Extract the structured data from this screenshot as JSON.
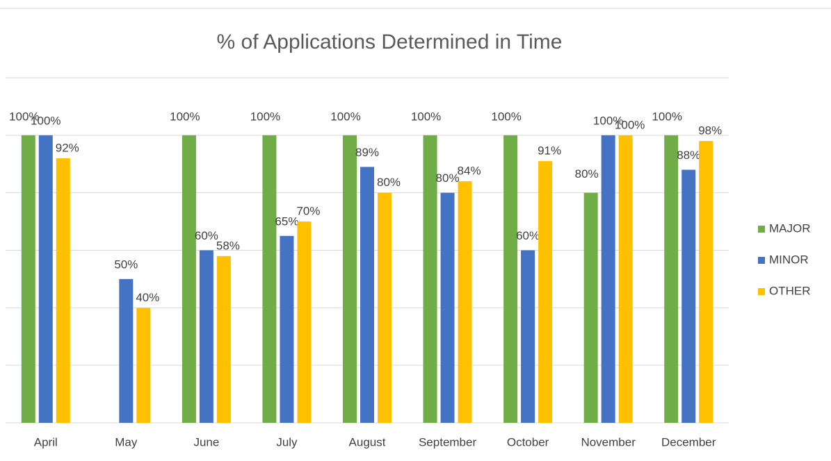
{
  "chart_data": {
    "type": "bar",
    "title": "% of Applications Determined in Time",
    "categories": [
      "April",
      "May",
      "June",
      "July",
      "August",
      "September",
      "October",
      "November",
      "December"
    ],
    "series": [
      {
        "name": "MAJOR",
        "color": "#70ad47",
        "values": [
          100,
          null,
          100,
          100,
          100,
          100,
          100,
          80,
          100
        ],
        "value_labels": [
          "100%",
          null,
          "100%",
          "100%",
          "100%",
          "100%",
          "100%",
          "80%",
          "100%"
        ]
      },
      {
        "name": "MINOR",
        "color": "#4472c4",
        "values": [
          100,
          50,
          60,
          65,
          89,
          80,
          60,
          100,
          88
        ],
        "value_labels": [
          "100%",
          "50%",
          "60%",
          "65%",
          "89%",
          "80%",
          "60%",
          "100%",
          "88%"
        ]
      },
      {
        "name": "OTHER",
        "color": "#ffc000",
        "values": [
          92,
          40,
          58,
          70,
          80,
          84,
          91,
          100,
          98
        ],
        "value_labels": [
          "92%",
          "40%",
          "58%",
          "70%",
          "80%",
          "84%",
          "91%",
          "100%",
          "98%"
        ]
      }
    ],
    "ylim": [
      0,
      120
    ],
    "yticks": [
      0,
      20,
      40,
      60,
      80,
      100,
      120
    ],
    "grid": true,
    "legend": "right"
  }
}
